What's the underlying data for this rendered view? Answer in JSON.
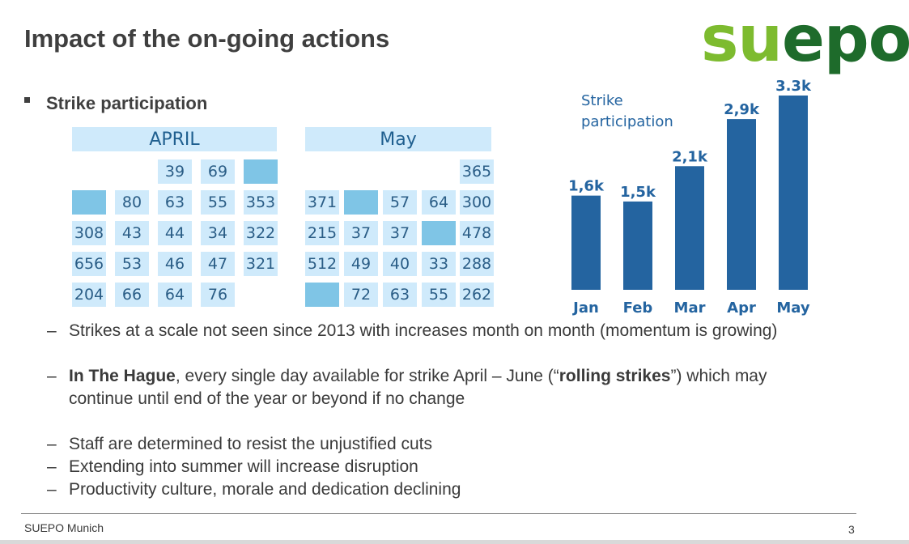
{
  "slide": {
    "title": "Impact of the on-going actions",
    "logo": {
      "part1": "su",
      "part2": "epo"
    },
    "section_heading": "Strike participation",
    "footer": "SUEPO Munich",
    "page_number": "3"
  },
  "calendars": [
    {
      "month": "APRIL",
      "rows": [
        [
          "",
          "",
          "39",
          "69",
          "#"
        ],
        [
          "#",
          "80",
          "63",
          "55",
          "353"
        ],
        [
          "308",
          "43",
          "44",
          "34",
          "322"
        ],
        [
          "656",
          "53",
          "46",
          "47",
          "321"
        ],
        [
          "204",
          "66",
          "64",
          "76",
          ""
        ]
      ]
    },
    {
      "month": "May",
      "rows": [
        [
          "",
          "",
          "",
          "",
          "365"
        ],
        [
          "371",
          "#",
          "57",
          "64",
          "300"
        ],
        [
          "215",
          "37",
          "37",
          "#",
          "478"
        ],
        [
          "512",
          "49",
          "40",
          "33",
          "288"
        ],
        [
          "#",
          "72",
          "63",
          "55",
          "262"
        ]
      ]
    }
  ],
  "chart_data": {
    "type": "bar",
    "title": "Strike participation",
    "categories": [
      "Jan",
      "Feb",
      "Mar",
      "Apr",
      "May"
    ],
    "values": [
      1600,
      1500,
      2100,
      2900,
      3300
    ],
    "data_labels": [
      "1,6k",
      "1,5k",
      "2,1k",
      "2,9k",
      "3.3k"
    ],
    "ylim": [
      0,
      3300
    ],
    "bar_color": "#2464a0",
    "label_color": "#2464a0",
    "grid": false
  },
  "bullets": [
    {
      "lines": [
        [
          {
            "text": "Strikes at a scale not seen since 2013 with increases month on month (momentum is growing)",
            "bold": false
          }
        ]
      ]
    },
    {
      "lines": [
        [
          {
            "text": "In The Hague",
            "bold": true
          },
          {
            "text": ", every single day available for strike April – June (“",
            "bold": false
          },
          {
            "text": "rolling strikes",
            "bold": true
          },
          {
            "text": "”) which may",
            "bold": false
          }
        ],
        [
          {
            "text": "continue until end of the year or beyond if no change",
            "bold": false
          }
        ]
      ]
    },
    {
      "lines": [
        [
          {
            "text": "Staff are determined to resist the unjustified cuts",
            "bold": false
          }
        ]
      ]
    },
    {
      "lines": [
        [
          {
            "text": "Extending into summer will increase disruption",
            "bold": false
          }
        ]
      ]
    },
    {
      "lines": [
        [
          {
            "text": "Productivity culture, morale and dedication declining",
            "bold": false
          }
        ]
      ]
    }
  ],
  "bullet_marker": "–"
}
